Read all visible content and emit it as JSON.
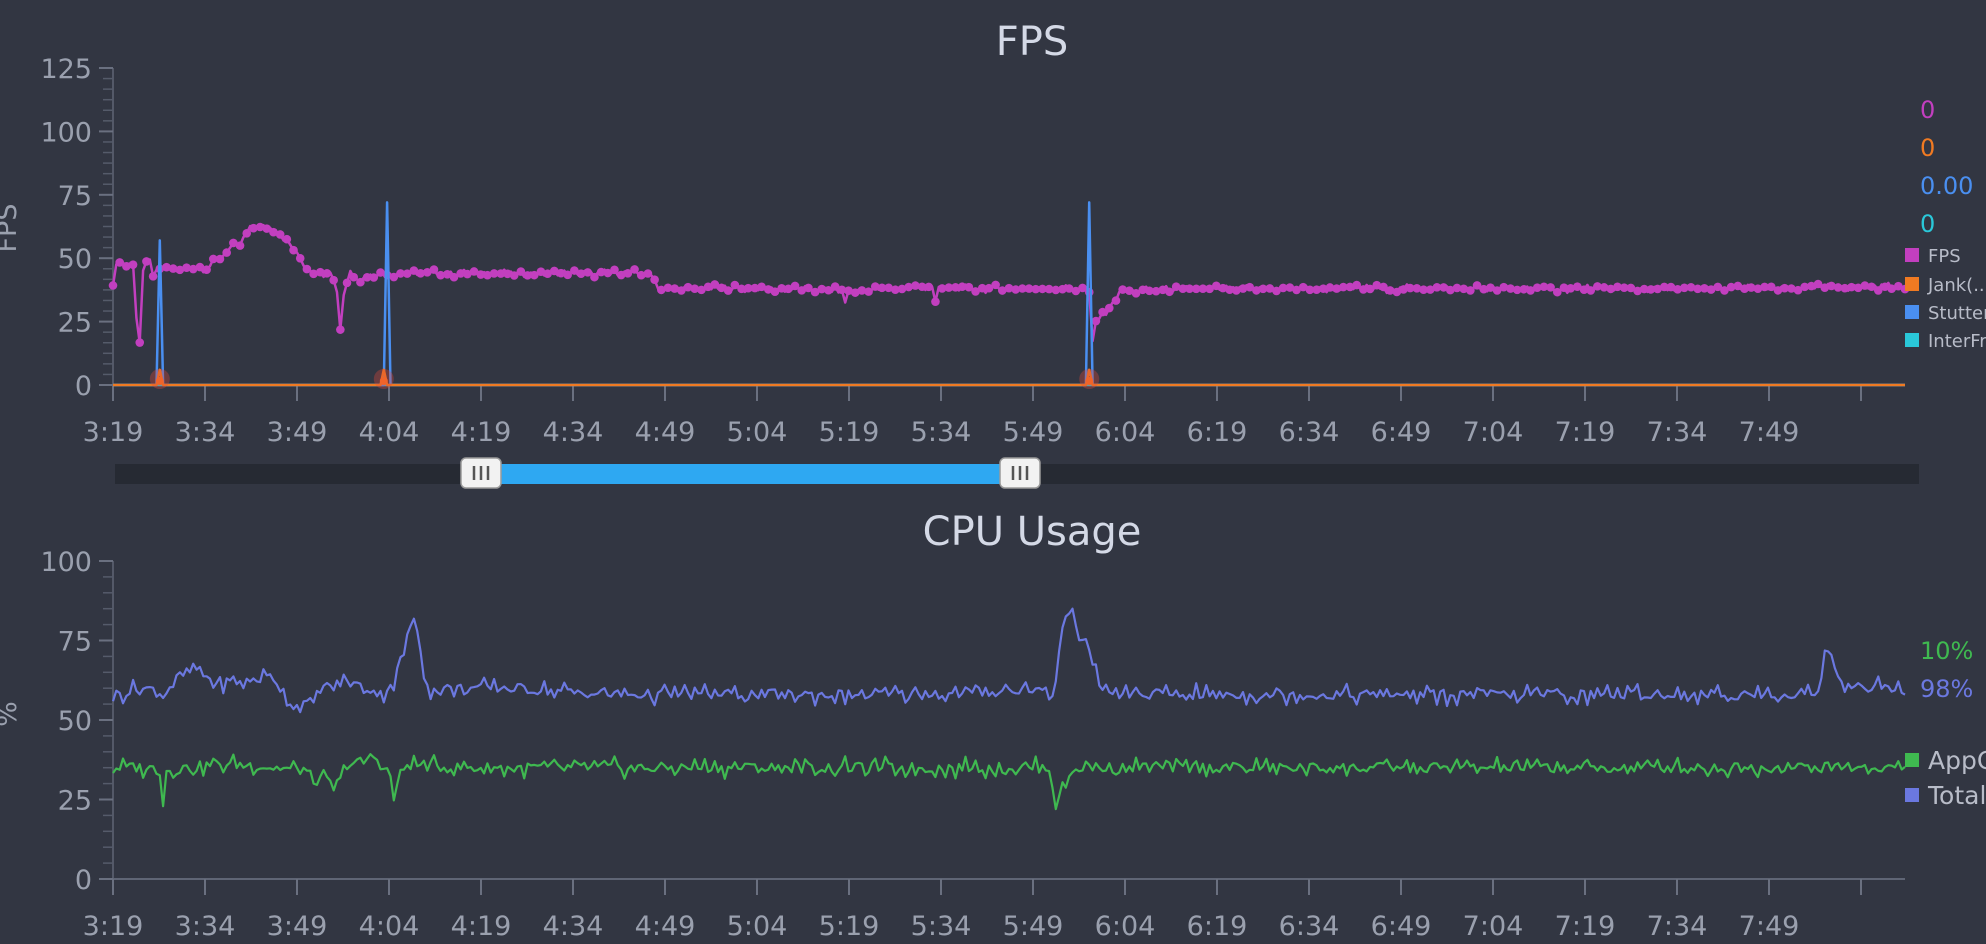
{
  "chart_data": [
    {
      "type": "line",
      "title": "FPS",
      "ylabel": "FPS",
      "xlabel": "",
      "ylim": [
        0,
        125
      ],
      "yticks": [
        "0",
        "25",
        "50",
        "75",
        "100",
        "125"
      ],
      "xticks": [
        "3:19",
        "3:34",
        "3:49",
        "4:04",
        "4:19",
        "4:34",
        "4:49",
        "5:04",
        "5:19",
        "5:34",
        "5:49",
        "6:04",
        "6:19",
        "6:34",
        "6:49",
        "7:04",
        "7:19",
        "7:34",
        "7:49"
      ],
      "legend_position": "right",
      "series": [
        {
          "name": "FPS",
          "color": "#c23fbf",
          "current": "0",
          "keypoints": [
            [
              0,
              41
            ],
            [
              0.3,
              49
            ],
            [
              1,
              47
            ],
            [
              2,
              49
            ],
            [
              3,
              48
            ],
            [
              4,
              47
            ],
            [
              5,
              48
            ],
            [
              6,
              47
            ],
            [
              7,
              27
            ],
            [
              8,
              17
            ],
            [
              9,
              45
            ],
            [
              10,
              48
            ],
            [
              11,
              49
            ],
            [
              12,
              44
            ],
            [
              15,
              46
            ],
            [
              20,
              45
            ],
            [
              24,
              47
            ],
            [
              28,
              46
            ],
            [
              32,
              50
            ],
            [
              35,
              54
            ],
            [
              38,
              55
            ],
            [
              41,
              62
            ],
            [
              47,
              62
            ],
            [
              49,
              61
            ],
            [
              52,
              57
            ],
            [
              56,
              50
            ],
            [
              58,
              46
            ],
            [
              62,
              44
            ],
            [
              65,
              45
            ],
            [
              67,
              37
            ],
            [
              68,
              22
            ],
            [
              69,
              36
            ],
            [
              71,
              45
            ],
            [
              74,
              41
            ],
            [
              76,
              43
            ],
            [
              80,
              44
            ],
            [
              100,
              44
            ],
            [
              120,
              44
            ],
            [
              140,
              44
            ],
            [
              156,
              44
            ],
            [
              162,
              43
            ],
            [
              163,
              38
            ],
            [
              200,
              38
            ],
            [
              218,
              37
            ],
            [
              219,
              33
            ],
            [
              220,
              37
            ],
            [
              245,
              39
            ],
            [
              246,
              32
            ],
            [
              247,
              38
            ],
            [
              290,
              38
            ],
            [
              292,
              36
            ],
            [
              293,
              17
            ],
            [
              294,
              25
            ],
            [
              296,
              28
            ],
            [
              299,
              32
            ],
            [
              301,
              37
            ],
            [
              340,
              38
            ],
            [
              380,
              38
            ],
            [
              420,
              38
            ],
            [
              460,
              38
            ],
            [
              500,
              38
            ],
            [
              530,
              39
            ],
            [
              536,
              38
            ]
          ]
        },
        {
          "name": "Jank(...)",
          "color": "#f07a22",
          "current": "0",
          "keypoints": [
            [
              0,
              0
            ],
            [
              13,
              0
            ],
            [
              14,
              6
            ],
            [
              15,
              0
            ],
            [
              80,
              0
            ],
            [
              81,
              6
            ],
            [
              82,
              0
            ],
            [
              291,
              0
            ],
            [
              292,
              6
            ],
            [
              293,
              0
            ],
            [
              536,
              0
            ]
          ]
        },
        {
          "name": "Stutter(...)",
          "color": "#4a8ff0",
          "current": "0.00",
          "keypoints": [
            [
              0,
              0
            ],
            [
              13,
              0
            ],
            [
              14,
              57
            ],
            [
              15,
              0
            ],
            [
              81,
              0
            ],
            [
              82,
              72
            ],
            [
              83,
              0
            ],
            [
              291,
              0
            ],
            [
              292,
              72
            ],
            [
              293,
              0
            ],
            [
              536,
              0
            ]
          ]
        },
        {
          "name": "InterFrame(...)",
          "color": "#2ac8d9",
          "current": "0",
          "keypoints": [
            [
              0,
              0
            ],
            [
              536,
              0
            ]
          ]
        }
      ]
    },
    {
      "type": "line",
      "title": "CPU Usage",
      "ylabel": "%",
      "xlabel": "",
      "ylim": [
        0,
        100
      ],
      "yticks": [
        "0",
        "25",
        "50",
        "75",
        "100"
      ],
      "xticks": [
        "3:19",
        "3:34",
        "3:49",
        "4:04",
        "4:19",
        "4:34",
        "4:49",
        "5:04",
        "5:19",
        "5:34",
        "5:49",
        "6:04",
        "6:19",
        "6:34",
        "6:49",
        "7:04",
        "7:19",
        "7:34",
        "7:49"
      ],
      "legend_position": "right",
      "series": [
        {
          "name": "AppCPU",
          "color": "#3fb950",
          "current": "10%",
          "keypoints": [
            [
              0,
              35
            ],
            [
              10,
              35
            ],
            [
              14,
              34
            ],
            [
              15,
              25
            ],
            [
              16,
              34
            ],
            [
              30,
              36
            ],
            [
              40,
              36
            ],
            [
              58,
              34
            ],
            [
              60,
              31
            ],
            [
              64,
              31
            ],
            [
              66,
              29
            ],
            [
              68,
              31
            ],
            [
              70,
              36
            ],
            [
              75,
              37
            ],
            [
              78,
              39
            ],
            [
              80,
              36
            ],
            [
              82,
              34
            ],
            [
              83,
              32
            ],
            [
              84,
              26
            ],
            [
              86,
              33
            ],
            [
              88,
              36
            ],
            [
              100,
              35
            ],
            [
              150,
              35
            ],
            [
              200,
              35
            ],
            [
              250,
              35
            ],
            [
              280,
              35
            ],
            [
              282,
              24
            ],
            [
              284,
              29
            ],
            [
              286,
              32
            ],
            [
              288,
              35
            ],
            [
              350,
              35
            ],
            [
              400,
              35
            ],
            [
              450,
              35
            ],
            [
              500,
              35
            ],
            [
              536,
              35
            ]
          ]
        },
        {
          "name": "Total",
          "color": "#6b78e0",
          "current": "98%",
          "keypoints": [
            [
              0,
              58
            ],
            [
              10,
              60
            ],
            [
              15,
              58
            ],
            [
              20,
              64
            ],
            [
              25,
              66
            ],
            [
              30,
              62
            ],
            [
              40,
              62
            ],
            [
              48,
              64
            ],
            [
              52,
              56
            ],
            [
              56,
              54
            ],
            [
              60,
              56
            ],
            [
              62,
              60
            ],
            [
              70,
              62
            ],
            [
              76,
              60
            ],
            [
              80,
              58
            ],
            [
              84,
              62
            ],
            [
              87,
              72
            ],
            [
              89,
              80
            ],
            [
              91,
              78
            ],
            [
              93,
              66
            ],
            [
              95,
              58
            ],
            [
              100,
              60
            ],
            [
              120,
              60
            ],
            [
              150,
              58
            ],
            [
              200,
              58
            ],
            [
              250,
              58
            ],
            [
              276,
              60
            ],
            [
              279,
              58
            ],
            [
              281,
              57
            ],
            [
              282,
              64
            ],
            [
              284,
              79
            ],
            [
              286,
              84
            ],
            [
              288,
              83
            ],
            [
              289,
              76
            ],
            [
              291,
              77
            ],
            [
              293,
              66
            ],
            [
              296,
              60
            ],
            [
              300,
              58
            ],
            [
              350,
              58
            ],
            [
              400,
              58
            ],
            [
              450,
              58
            ],
            [
              500,
              58
            ],
            [
              510,
              59
            ],
            [
              511,
              62
            ],
            [
              512,
              72
            ],
            [
              514,
              70
            ],
            [
              516,
              65
            ],
            [
              518,
              60
            ],
            [
              525,
              61
            ],
            [
              530,
              60
            ],
            [
              536,
              59
            ]
          ]
        }
      ]
    }
  ],
  "range_slider": {
    "start": 0.2,
    "end": 0.5
  }
}
